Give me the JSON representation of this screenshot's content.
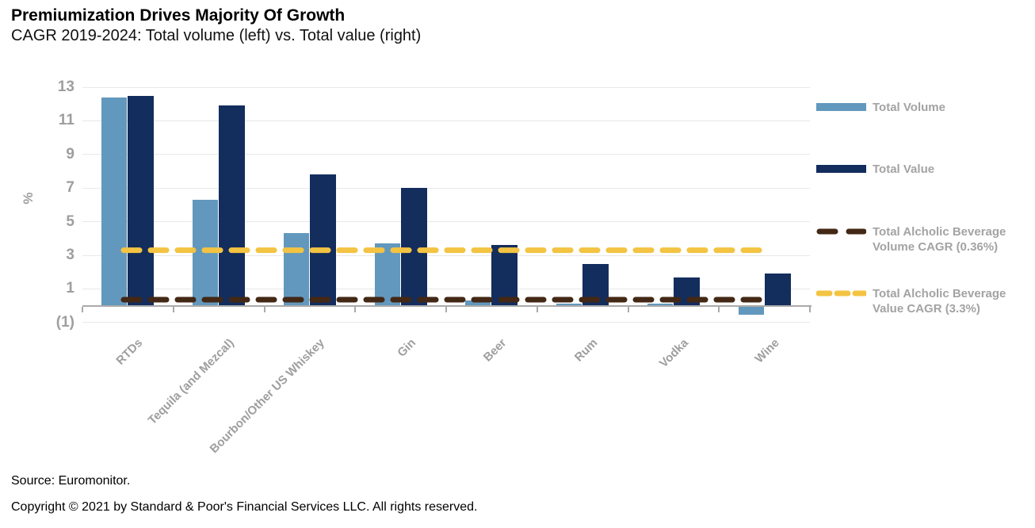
{
  "header": {
    "title": "Premiumization Drives Majority Of Growth",
    "subtitle": "CAGR 2019-2024: Total volume (left) vs. Total value (right)"
  },
  "footer": {
    "source": "Source: Euromonitor.",
    "copyright": "Copyright © 2021 by Standard & Poor's Financial Services LLC. All rights reserved."
  },
  "colors": {
    "volume_bar": "#6298BD",
    "value_bar": "#132D5D",
    "volume_cagr_line": "#432815",
    "value_cagr_line": "#F3C342",
    "axis_text": "#9e9e9e",
    "gridline": "#e8e8e8",
    "axis_line": "#aaaaaa"
  },
  "chart_data": {
    "type": "bar",
    "title": "Premiumization Drives Majority Of Growth",
    "subtitle": "CAGR 2019-2024: Total volume (left) vs. Total value (right)",
    "categories": [
      "RTDs",
      "Tequila (and Mezcal)",
      "Bourbon/Other US Whiskey",
      "Gin",
      "Beer",
      "Rum",
      "Vodka",
      "Wine"
    ],
    "series": [
      {
        "name": "Total Volume",
        "color": "#6298BD",
        "values": [
          12.4,
          6.3,
          4.3,
          3.7,
          0.3,
          0.1,
          0.1,
          -0.5
        ]
      },
      {
        "name": "Total Value",
        "color": "#132D5D",
        "values": [
          12.5,
          11.9,
          7.8,
          7.0,
          3.6,
          2.5,
          1.7,
          1.9
        ]
      }
    ],
    "reference_lines": [
      {
        "name": "Total Alcholic Beverage Volume CAGR (0.36%)",
        "value": 0.36,
        "color": "#432815",
        "style": "dashed"
      },
      {
        "name": "Total Alcholic Beverage Value CAGR (3.3%)",
        "value": 3.3,
        "color": "#F3C342",
        "style": "dashed"
      }
    ],
    "xlabel": "",
    "ylabel": "%",
    "yticks": [
      13,
      11,
      9,
      7,
      5,
      3,
      1,
      -1
    ],
    "negative_tick_format": "parentheses",
    "ylim": [
      -1.2,
      13.6
    ],
    "grid": true,
    "legend_position": "right"
  }
}
